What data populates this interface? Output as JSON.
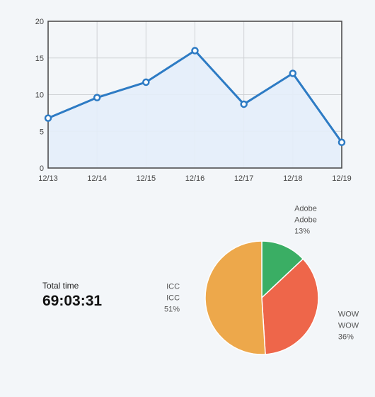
{
  "chart_data": [
    {
      "type": "area",
      "categories": [
        "12/13",
        "12/14",
        "12/15",
        "12/16",
        "12/17",
        "12/18",
        "12/19"
      ],
      "series": [
        {
          "values": [
            6.8,
            9.6,
            11.7,
            16.0,
            8.7,
            12.9,
            3.5
          ]
        }
      ],
      "y_ticks": [
        "0",
        "5",
        "10",
        "15",
        "20"
      ],
      "ylim": [
        0,
        20
      ],
      "grid": true,
      "line_color": "#2d7bc4",
      "fill_color": "#e4eef9"
    },
    {
      "type": "pie",
      "slices": [
        {
          "name": "Adobe",
          "label": "Adobe",
          "value": 13,
          "pct_label": "13%",
          "color": "#3aae64"
        },
        {
          "name": "WOW",
          "label": "WOW",
          "value": 36,
          "pct_label": "36%",
          "color": "#ee664a"
        },
        {
          "name": "ICC",
          "label": "ICC",
          "value": 51,
          "pct_label": "51%",
          "color": "#eda84b"
        }
      ]
    }
  ],
  "summary": {
    "label": "Total time",
    "value": "69:03:31"
  }
}
